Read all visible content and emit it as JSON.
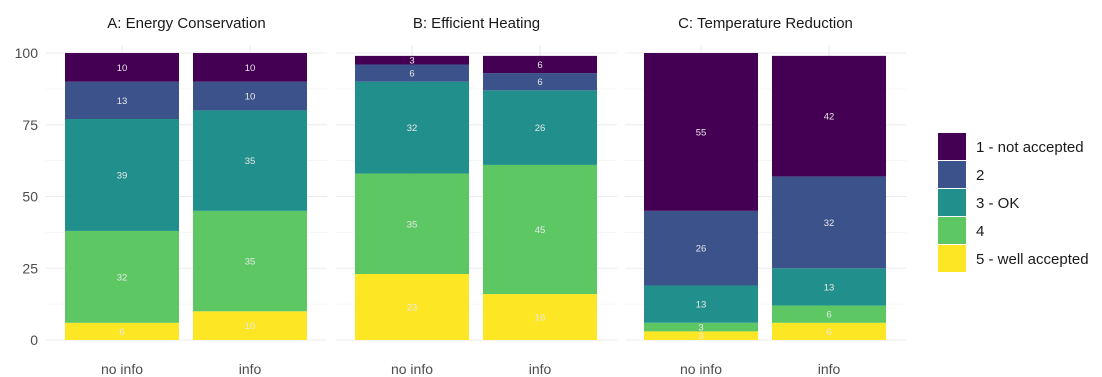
{
  "chart_data": {
    "type": "bar",
    "stacked": true,
    "facets": [
      {
        "title": "A: Energy Conservation",
        "categories": [
          "no info",
          "info"
        ],
        "series": [
          {
            "name": "5 - well accepted",
            "values": [
              6,
              10
            ]
          },
          {
            "name": "4",
            "values": [
              32,
              35
            ]
          },
          {
            "name": "3 - OK",
            "values": [
              39,
              35
            ]
          },
          {
            "name": "2",
            "values": [
              13,
              10
            ]
          },
          {
            "name": "1 - not accepted",
            "values": [
              10,
              10
            ]
          }
        ]
      },
      {
        "title": "B: Efficient Heating",
        "categories": [
          "no info",
          "info"
        ],
        "series": [
          {
            "name": "5 - well accepted",
            "values": [
              23,
              16
            ]
          },
          {
            "name": "4",
            "values": [
              35,
              45
            ]
          },
          {
            "name": "3 - OK",
            "values": [
              32,
              26
            ]
          },
          {
            "name": "2",
            "values": [
              6,
              6
            ]
          },
          {
            "name": "1 - not accepted",
            "values": [
              3,
              6
            ]
          }
        ]
      },
      {
        "title": "C: Temperature Reduction",
        "categories": [
          "no info",
          "info"
        ],
        "series": [
          {
            "name": "5 - well accepted",
            "values": [
              3,
              6
            ]
          },
          {
            "name": "4",
            "values": [
              3,
              6
            ]
          },
          {
            "name": "3 - OK",
            "values": [
              13,
              13
            ]
          },
          {
            "name": "2",
            "values": [
              26,
              32
            ]
          },
          {
            "name": "1 - not accepted",
            "values": [
              55,
              42
            ]
          }
        ]
      }
    ],
    "legend": {
      "position": "right",
      "entries": [
        {
          "label": "1 - not accepted",
          "color": "#440154"
        },
        {
          "label": "2",
          "color": "#3B528B"
        },
        {
          "label": "3 - OK",
          "color": "#21908C"
        },
        {
          "label": "4",
          "color": "#5DC863"
        },
        {
          "label": "5 - well accepted",
          "color": "#FDE725"
        }
      ]
    },
    "colors": {
      "5 - well accepted": "#FDE725",
      "4": "#5DC863",
      "3 - OK": "#21908C",
      "2": "#3B528B",
      "1 - not accepted": "#440154"
    },
    "ylim": [
      0,
      100
    ],
    "yticks": [
      0,
      25,
      50,
      75,
      100
    ],
    "grid": true,
    "xlabel": "",
    "ylabel": ""
  }
}
